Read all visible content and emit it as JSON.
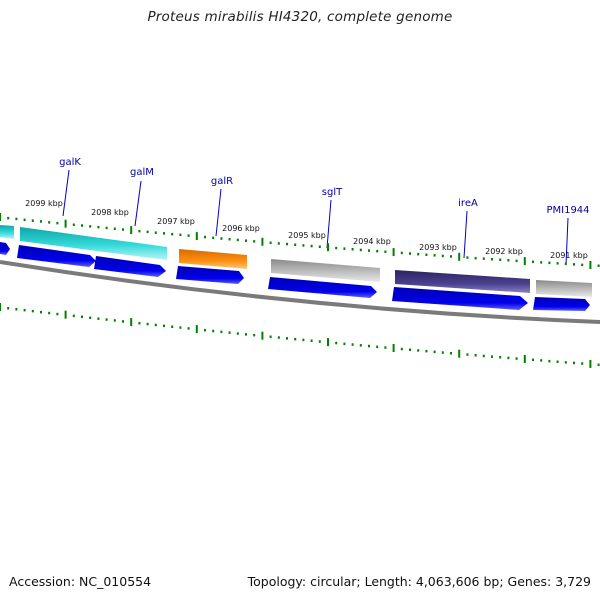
{
  "title": "Proteus mirabilis HI4320, complete genome",
  "footer": {
    "accession": "Accession: NC_010554",
    "summary": "Topology: circular; Length: 4,063,606 bp; Genes: 3,729"
  },
  "colors": {
    "cds": "#0000ee",
    "backbone": "#808080",
    "tick": "#008000",
    "label_line": "#0000cc",
    "gene_label": "#0000aa"
  },
  "kbp_labels": [
    "2099 kbp",
    "2098 kbp",
    "2097 kbp",
    "2096 kbp",
    "2095 kbp",
    "2094 kbp",
    "2093 kbp",
    "2092 kbp",
    "2091 kbp"
  ],
  "genes": [
    {
      "name": "galK",
      "color": "#20c8c8"
    },
    {
      "name": "galM",
      "color": "#20c8c8"
    },
    {
      "name": "galR",
      "color": "#ff8c00"
    },
    {
      "name": "sglT",
      "color": "#b0b0b0"
    },
    {
      "name": "ireA",
      "color": "#3d3580"
    },
    {
      "name": "PMI1944",
      "color": "#b0b0b0"
    }
  ]
}
